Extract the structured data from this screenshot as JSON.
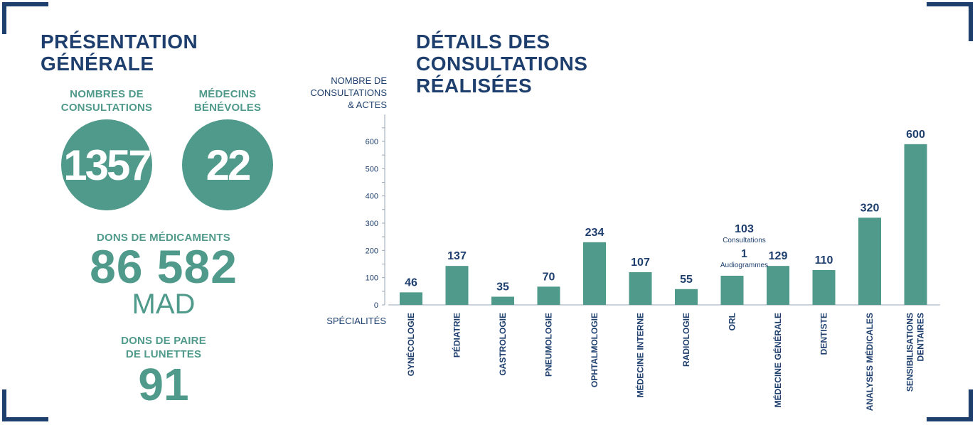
{
  "left": {
    "title": "PRÉSENTATION\nGÉNÉRALE",
    "consultations": {
      "label": "NOMBRES DE\nCONSULTATIONS",
      "value": "1357"
    },
    "medecins": {
      "label": "MÉDECINS\nBÉNÉVOLES",
      "value": "22"
    },
    "dons_medicaments": {
      "label": "DONS DE MÉDICAMENTS",
      "value": "86 582",
      "unit": "MAD"
    },
    "dons_lunettes": {
      "label": "DONS DE PAIRE\nDE LUNETTES",
      "value": "91"
    }
  },
  "right": {
    "title": "DÉTAILS DES\nCONSULTATIONS\nRÉALISÉES"
  },
  "colors": {
    "navy": "#1e3f6e",
    "teal": "#4f9a8b"
  },
  "chart_data": {
    "type": "bar",
    "ylabel": "NOMBRE DE\nCONSULTATIONS\n& ACTES",
    "xlabel": "SPÉCIALITÉS",
    "ylim": [
      0,
      600
    ],
    "yticks": [
      0,
      100,
      200,
      300,
      400,
      500,
      600
    ],
    "categories": [
      "GYNÉCOLOGIE",
      "PÉDIATRIE",
      "GASTROLOGIE",
      "PNEUMOLOGIE",
      "OPHTALMOLOGIE",
      "MÉDECINE INTERNE",
      "RADIOLOGIE",
      "ORL",
      "MÉDECINE GÉNÉRALE",
      "DENTISTE",
      "ANALYSES MÉDICALES",
      "SENSIBILISATIONS\nDENTAIRES"
    ],
    "values": [
      46,
      137,
      35,
      70,
      234,
      107,
      55,
      103,
      129,
      110,
      320,
      600
    ],
    "bar_values": [
      46,
      143,
      30,
      67,
      230,
      120,
      58,
      107,
      143,
      128,
      320,
      590
    ],
    "value_labels": [
      "46",
      "137",
      "35",
      "70",
      "234",
      "107",
      "55",
      "103",
      "129",
      "110",
      "320",
      "600"
    ],
    "orl_annotation": {
      "sub1": "Consultations",
      "extra_value": "1",
      "sub2": "Audiogrammes"
    }
  }
}
